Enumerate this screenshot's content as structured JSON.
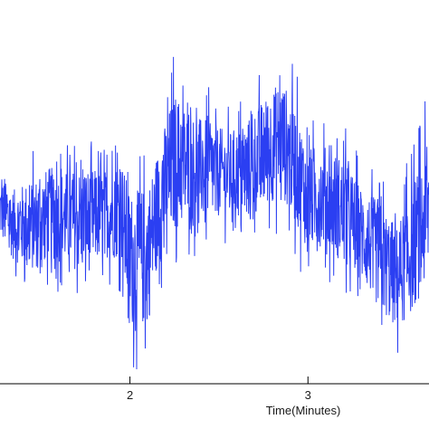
{
  "chart_data": {
    "type": "line",
    "xlabel": "Time(Minutes)",
    "ylabel": "",
    "title": "",
    "xlim": [
      1.27,
      3.68
    ],
    "ylim": [
      -1.0,
      1.0
    ],
    "x_ticks": [
      {
        "value": 2,
        "label": "2"
      },
      {
        "value": 3,
        "label": "3"
      }
    ],
    "grid": false,
    "legend": "none",
    "line_color": "#2b3ff2",
    "axis_color": "#000000",
    "series": [
      {
        "envelope": [
          {
            "x": 1.27,
            "lo": -0.3,
            "hi": 0.3
          },
          {
            "x": 1.35,
            "lo": -0.45,
            "hi": 0.25
          },
          {
            "x": 1.45,
            "lo": -0.55,
            "hi": 0.35
          },
          {
            "x": 1.55,
            "lo": -0.48,
            "hi": 0.42
          },
          {
            "x": 1.65,
            "lo": -0.52,
            "hi": 0.4
          },
          {
            "x": 1.75,
            "lo": -0.6,
            "hi": 0.45
          },
          {
            "x": 1.85,
            "lo": -0.45,
            "hi": 0.38
          },
          {
            "x": 1.95,
            "lo": -0.5,
            "hi": 0.5
          },
          {
            "x": 2.0,
            "lo": -0.95,
            "hi": 0.35
          },
          {
            "x": 2.1,
            "lo": -0.97,
            "hi": 0.4
          },
          {
            "x": 2.15,
            "lo": -0.6,
            "hi": 0.55
          },
          {
            "x": 2.25,
            "lo": -0.4,
            "hi": 0.95
          },
          {
            "x": 2.35,
            "lo": -0.3,
            "hi": 0.75
          },
          {
            "x": 2.45,
            "lo": -0.25,
            "hi": 0.7
          },
          {
            "x": 2.55,
            "lo": -0.2,
            "hi": 0.6
          },
          {
            "x": 2.65,
            "lo": -0.28,
            "hi": 0.7
          },
          {
            "x": 2.75,
            "lo": -0.22,
            "hi": 0.85
          },
          {
            "x": 2.85,
            "lo": -0.15,
            "hi": 0.98
          },
          {
            "x": 2.92,
            "lo": -0.3,
            "hi": 0.85
          },
          {
            "x": 3.0,
            "lo": -0.45,
            "hi": 0.55
          },
          {
            "x": 3.1,
            "lo": -0.4,
            "hi": 0.55
          },
          {
            "x": 3.2,
            "lo": -0.55,
            "hi": 0.5
          },
          {
            "x": 3.3,
            "lo": -0.6,
            "hi": 0.3
          },
          {
            "x": 3.4,
            "lo": -0.8,
            "hi": 0.25
          },
          {
            "x": 3.5,
            "lo": -0.92,
            "hi": 0.1
          },
          {
            "x": 3.58,
            "lo": -0.85,
            "hi": 0.35
          },
          {
            "x": 3.68,
            "lo": -0.7,
            "hi": 0.7
          }
        ]
      }
    ]
  }
}
